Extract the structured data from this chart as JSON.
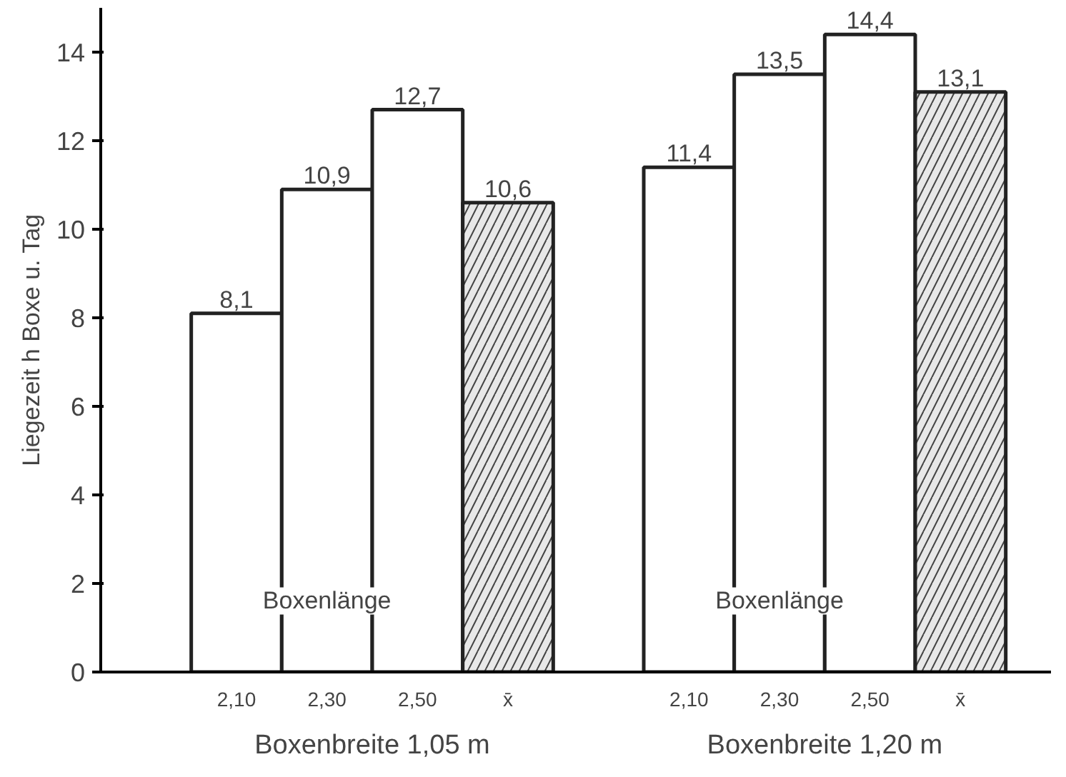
{
  "chart_data": {
    "type": "bar",
    "ylabel": "Liegezeit h Boxe u. Tag",
    "categories": [
      "2,10",
      "2,30",
      "2,50",
      "x̄",
      null,
      "2,10",
      "2,30",
      "2,50",
      "x̄"
    ],
    "values": [
      8.1,
      10.9,
      12.7,
      10.6,
      null,
      11.4,
      13.5,
      14.4,
      13.1
    ],
    "value_labels": [
      "8,1",
      "10,9",
      "12,7",
      "10,6",
      null,
      "11,4",
      "13,5",
      "14,4",
      "13,1"
    ],
    "colors": [
      "#ffffff",
      "#ffffff",
      "#ffffff",
      "#e8e8e8",
      "#ffffff",
      "#ffffff",
      "#ffffff",
      "#ffffff",
      "#e8e8e8"
    ],
    "ylim": [
      0,
      15
    ],
    "yticks": [
      0,
      2,
      4,
      6,
      8,
      10,
      12,
      14
    ],
    "annotations": [
      "Boxenlänge",
      "Boxenlänge",
      "Boxenbreite 1,05 m",
      "Boxenbreite 1,20 m"
    ],
    "grid": false
  }
}
